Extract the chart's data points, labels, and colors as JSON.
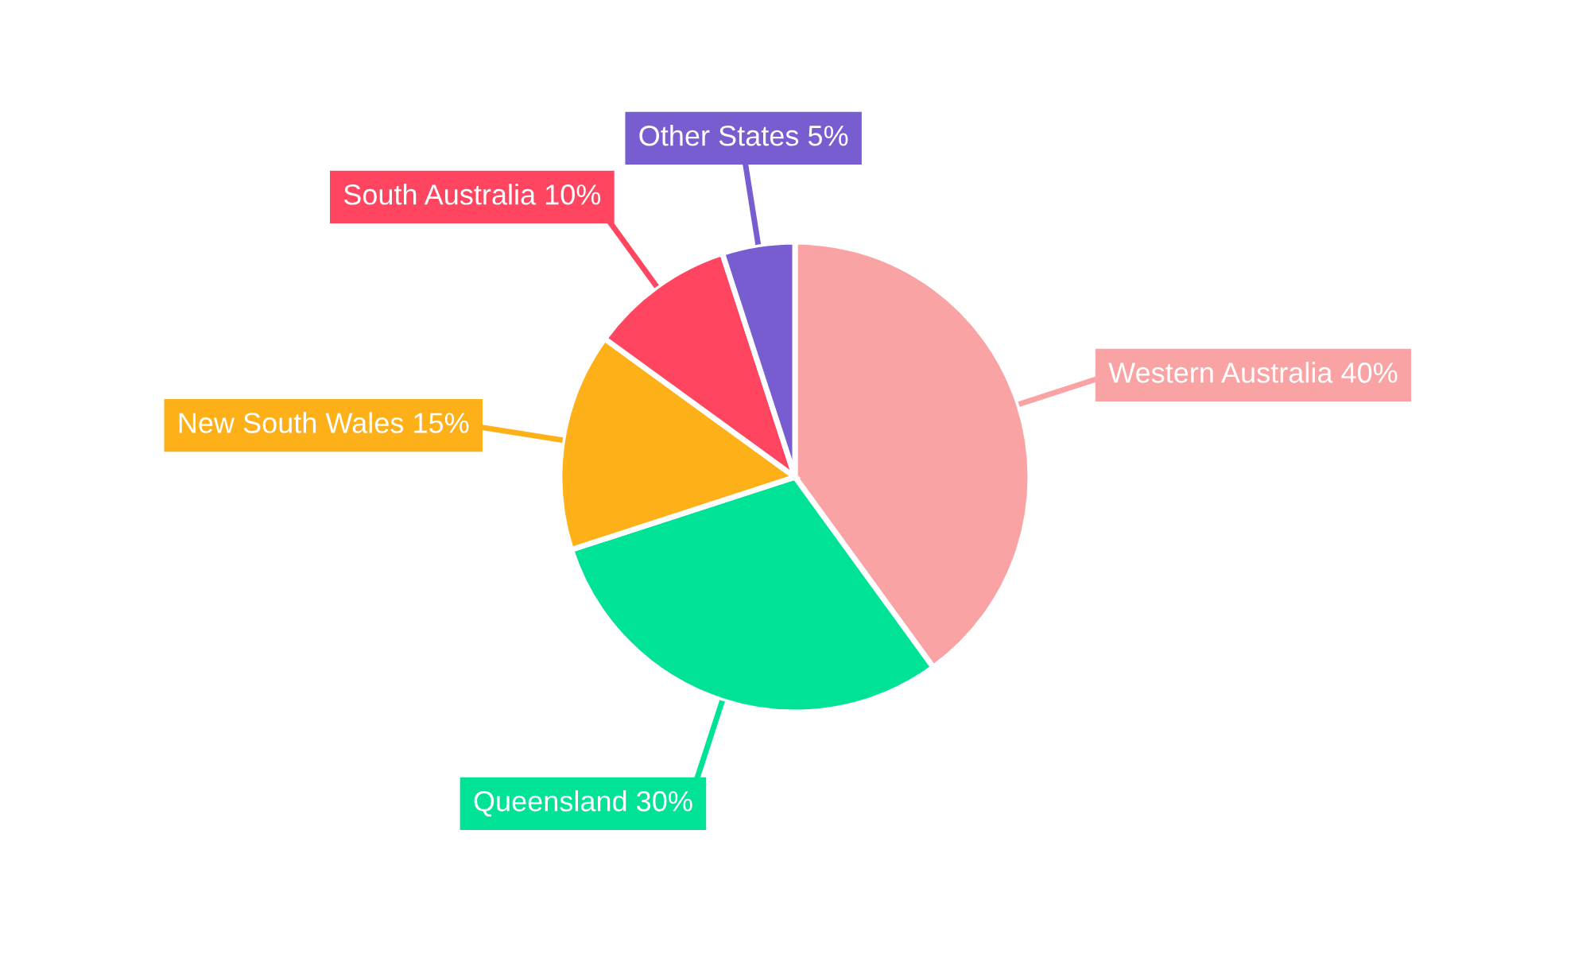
{
  "chart_data": {
    "type": "pie",
    "categories": [
      "Western Australia",
      "Queensland",
      "New South Wales",
      "South Australia",
      "Other States"
    ],
    "values": [
      40,
      30,
      15,
      10,
      5
    ],
    "value_labels": [
      "40%",
      "30%",
      "15%",
      "10%",
      "5%"
    ],
    "colors": [
      "#f9a3a4",
      "#00e396",
      "#feb019",
      "#ff4560",
      "#775dd0"
    ],
    "legend": false
  }
}
